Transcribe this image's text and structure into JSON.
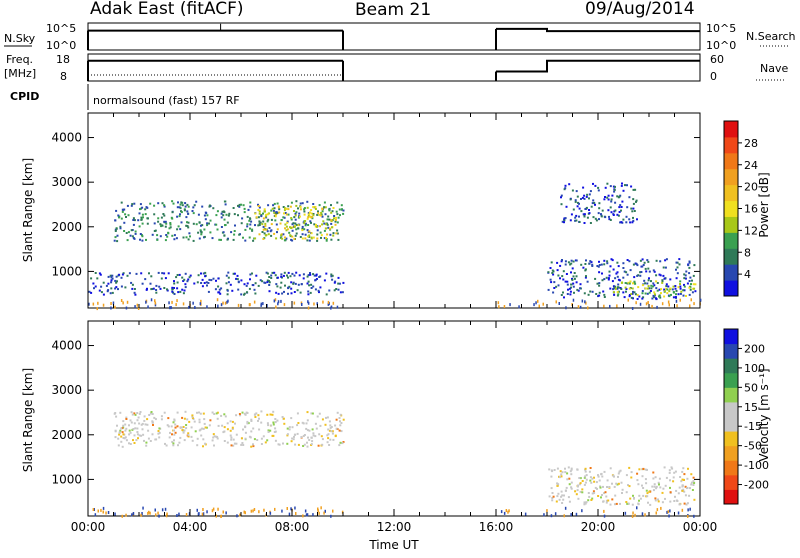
{
  "header": {
    "radar": "Adak East (fitACF)",
    "beam": "Beam 21",
    "date": "09/Aug/2014"
  },
  "chart_data": [
    {
      "type": "line",
      "name": "noise-panel",
      "left_label": "N.Sky",
      "right_label": "N.Search",
      "left_ticks": [
        "10^5",
        "10^0"
      ],
      "right_ticks": [
        "10^5",
        "10^0"
      ],
      "x_hours": [
        0,
        10,
        10,
        16,
        16,
        18,
        18,
        24
      ],
      "y_level": [
        0.72,
        0.72,
        null,
        null,
        0.78,
        0.78,
        0.7,
        0.7
      ]
    },
    {
      "type": "line",
      "name": "frequency-panel",
      "left_label_lines": [
        "Freq.",
        "[MHz]"
      ],
      "right_label": "Nave",
      "left_ticks": [
        "18",
        "8"
      ],
      "right_ticks": [
        "60",
        "0"
      ],
      "freq_x": [
        0,
        10,
        10,
        16,
        16,
        18,
        18,
        24
      ],
      "freq_level": [
        0.75,
        0.75,
        null,
        null,
        0.35,
        0.35,
        0.75,
        0.75
      ],
      "nave_level": 0.22
    },
    {
      "type": "table",
      "name": "cpid-panel",
      "label": "CPID",
      "text": "normalsound (fast) 157 RF"
    },
    {
      "type": "heatmap",
      "name": "power-panel",
      "ylabel": "Slant Range [km]",
      "yticks": [
        1000,
        2000,
        3000,
        4000
      ],
      "ylim": [
        180,
        4550
      ],
      "colorbar_label": "Power [dB]",
      "colorbar_ticks": [
        "4",
        "8",
        "12",
        "16",
        "20",
        "24",
        "28"
      ],
      "colorbar_colors": [
        "#1010e0",
        "#2848b0",
        "#2f7a58",
        "#3aa050",
        "#a8c818",
        "#f0e020",
        "#f0c020",
        "#f0a020",
        "#f07818",
        "#f04818",
        "#e01010"
      ],
      "regions": [
        {
          "x0": 1,
          "x1": 10,
          "y0": 1700,
          "y1": 2600,
          "level": 2
        },
        {
          "x0": 6.5,
          "x1": 9.7,
          "y0": 1750,
          "y1": 2500,
          "level": 5
        },
        {
          "x0": 0,
          "x1": 10,
          "y0": 500,
          "y1": 1000,
          "level": 1
        },
        {
          "x0": 18,
          "x1": 23.8,
          "y0": 400,
          "y1": 1300,
          "level": 1
        },
        {
          "x0": 20.5,
          "x1": 23.8,
          "y0": 450,
          "y1": 800,
          "level": 4
        },
        {
          "x0": 18.5,
          "x1": 21.5,
          "y0": 2100,
          "y1": 3000,
          "level": 1
        }
      ]
    },
    {
      "type": "heatmap",
      "name": "velocity-panel",
      "ylabel": "Slant Range [km]",
      "yticks": [
        1000,
        2000,
        3000,
        4000
      ],
      "ylim": [
        180,
        4550
      ],
      "colorbar_label": "Velocity [m s⁻¹]",
      "colorbar_ticks": [
        "-200",
        "-100",
        "-50",
        "-15",
        "15",
        "50",
        "100",
        "200"
      ],
      "colorbar_colors": [
        "#e01010",
        "#f04818",
        "#f07818",
        "#f0a020",
        "#f0c020",
        "#c8c8c8",
        "#c8c8c8",
        "#90d050",
        "#3aa050",
        "#2f7a58",
        "#2848b0",
        "#1010e0"
      ],
      "xlabel": "Time UT",
      "xticks": [
        "00:00",
        "04:00",
        "08:00",
        "12:00",
        "16:00",
        "20:00",
        "00:00"
      ],
      "regions": [
        {
          "x0": 1,
          "x1": 10,
          "y0": 1750,
          "y1": 2550,
          "level": "gray"
        },
        {
          "x0": 18,
          "x1": 23.8,
          "y0": 450,
          "y1": 1300,
          "level": "gray"
        }
      ]
    }
  ]
}
